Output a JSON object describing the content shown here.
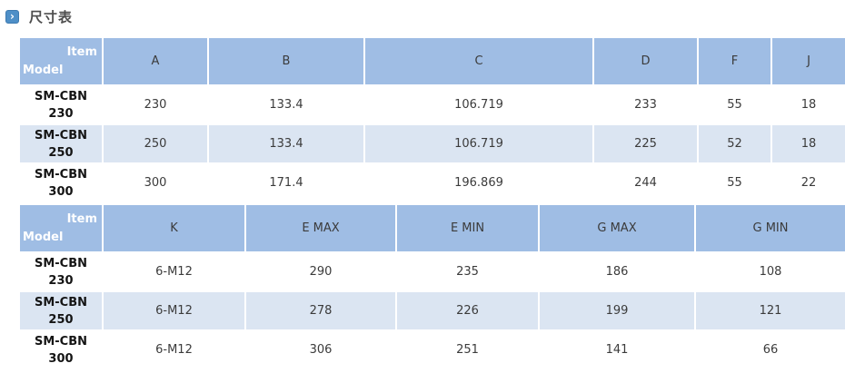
{
  "page": {
    "section_title": "尺寸表"
  },
  "icons": {
    "bullet_chevron": "›"
  },
  "colors": {
    "header_blue": "#9FBDE4",
    "row_alt_blue": "#DBE5F2",
    "icon_blue": "#4E8FC7",
    "header_text": "#FFFFFF",
    "body_text": "#3B3B3B"
  },
  "tables": [
    {
      "corner": {
        "top": "Item",
        "bottom": "Model"
      },
      "columns": [
        "A",
        "B",
        "C",
        "D",
        "F",
        "J"
      ],
      "rows": [
        {
          "model": [
            "SM-CBN",
            "230"
          ],
          "values": [
            "230",
            "133.4",
            "106.719",
            "233",
            "55",
            "18"
          ]
        },
        {
          "model": [
            "SM-CBN",
            "250"
          ],
          "values": [
            "250",
            "133.4",
            "106.719",
            "225",
            "52",
            "18"
          ]
        },
        {
          "model": [
            "SM-CBN",
            "300"
          ],
          "values": [
            "300",
            "171.4",
            "196.869",
            "244",
            "55",
            "22"
          ]
        }
      ]
    },
    {
      "corner": {
        "top": "Item",
        "bottom": "Model"
      },
      "columns": [
        "K",
        "E MAX",
        "E MIN",
        "G MAX",
        "G MIN"
      ],
      "rows": [
        {
          "model": [
            "SM-CBN",
            "230"
          ],
          "values": [
            "6-M12",
            "290",
            "235",
            "186",
            "108"
          ]
        },
        {
          "model": [
            "SM-CBN",
            "250"
          ],
          "values": [
            "6-M12",
            "278",
            "226",
            "199",
            "121"
          ]
        },
        {
          "model": [
            "SM-CBN",
            "300"
          ],
          "values": [
            "6-M12",
            "306",
            "251",
            "141",
            "66"
          ]
        }
      ]
    }
  ]
}
